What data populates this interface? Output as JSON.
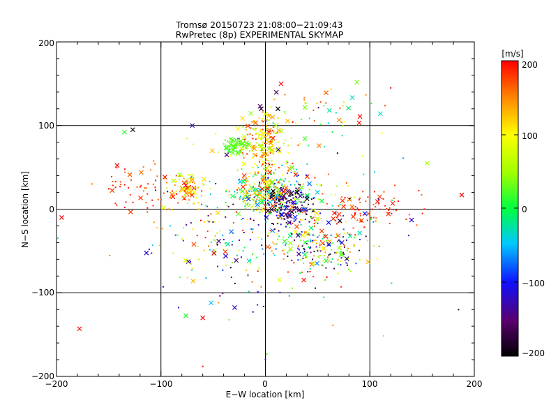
{
  "chart_data": {
    "type": "scatter",
    "title": "Tromsø 20150723 21:08:00−21:09:43",
    "subtitle": "RwPretec (8p) EXPERIMENTAL SKYMAP",
    "xlabel": "E−W location [km]",
    "ylabel": "N−S location [km]",
    "xlim": [
      -200,
      200
    ],
    "ylim": [
      -200,
      200
    ],
    "xticks": [
      "−200",
      "−100",
      "0",
      "100",
      "200"
    ],
    "yticks": [
      "−200",
      "−100",
      "0",
      "100",
      "200"
    ],
    "grid": "major lines at every 100 km",
    "colorbar": {
      "label": "[m/s]",
      "range": [
        -200,
        200
      ],
      "ticks": [
        "200",
        "100",
        "0",
        "−100",
        "−200"
      ],
      "colormap": "black-purple-blue-cyan-green-yellow-orange-red",
      "placement": "right"
    },
    "markers": {
      "dot": "small point",
      "cross": "x marker"
    },
    "clusters": [
      {
        "x": 5,
        "y": 20,
        "sx": 18,
        "sy": 14,
        "n": 340,
        "vel": [
          -80,
          200
        ]
      },
      {
        "x": 0,
        "y": 80,
        "sx": 14,
        "sy": 18,
        "n": 200,
        "vel": [
          40,
          200
        ]
      },
      {
        "x": -28,
        "y": 77,
        "sx": 6,
        "sy": 5,
        "n": 60,
        "vel": [
          10,
          40
        ]
      },
      {
        "x": 45,
        "y": -45,
        "sx": 22,
        "sy": 20,
        "n": 240,
        "vel": [
          -200,
          200
        ]
      },
      {
        "x": 20,
        "y": 5,
        "sx": 12,
        "sy": 12,
        "n": 150,
        "vel": [
          -200,
          -90
        ]
      },
      {
        "x": -75,
        "y": 25,
        "sx": 10,
        "sy": 8,
        "n": 80,
        "vel": [
          50,
          200
        ]
      },
      {
        "x": -120,
        "y": 25,
        "sx": 20,
        "sy": 15,
        "n": 60,
        "vel": [
          150,
          200
        ]
      },
      {
        "x": -40,
        "y": -40,
        "sx": 25,
        "sy": 30,
        "n": 100,
        "vel": [
          -200,
          200
        ]
      },
      {
        "x": 100,
        "y": 0,
        "sx": 25,
        "sy": 15,
        "n": 90,
        "vel": [
          160,
          200
        ]
      },
      {
        "x": 60,
        "y": 120,
        "sx": 25,
        "sy": 15,
        "n": 40,
        "vel": [
          -50,
          200
        ]
      },
      {
        "x": 0,
        "y": 0,
        "sx": 70,
        "sy": 70,
        "n": 150,
        "vel": [
          -200,
          200
        ]
      }
    ],
    "notable_points": [
      {
        "x": -178,
        "y": -143,
        "marker": "cross",
        "vel": 200
      },
      {
        "x": 188,
        "y": 17,
        "marker": "cross",
        "vel": 200
      },
      {
        "x": 155,
        "y": 55,
        "marker": "cross",
        "vel": 50
      },
      {
        "x": -135,
        "y": 92,
        "marker": "cross",
        "vel": 10
      },
      {
        "x": -127,
        "y": 95,
        "marker": "cross",
        "vel": -200
      },
      {
        "x": 15,
        "y": 150,
        "marker": "cross",
        "vel": 200
      },
      {
        "x": -195,
        "y": -10,
        "marker": "cross",
        "vel": 200
      },
      {
        "x": -60,
        "y": -130,
        "marker": "cross",
        "vel": 200
      },
      {
        "x": -52,
        "y": -112,
        "marker": "cross",
        "vel": -50
      },
      {
        "x": -5,
        "y": 123,
        "marker": "cross",
        "vel": -150
      },
      {
        "x": -4,
        "y": 120,
        "marker": "cross",
        "vel": -180
      },
      {
        "x": 12,
        "y": 120,
        "marker": "cross",
        "vel": -200
      },
      {
        "x": -70,
        "y": 100,
        "marker": "cross",
        "vel": -130
      },
      {
        "x": 120,
        "y": 145,
        "marker": "dot",
        "vel": 200
      },
      {
        "x": 140,
        "y": -13,
        "marker": "cross",
        "vel": -120
      },
      {
        "x": 0,
        "y": -180,
        "marker": "dot",
        "vel": -120
      },
      {
        "x": -60,
        "y": -188,
        "marker": "dot",
        "vel": 200
      }
    ]
  }
}
